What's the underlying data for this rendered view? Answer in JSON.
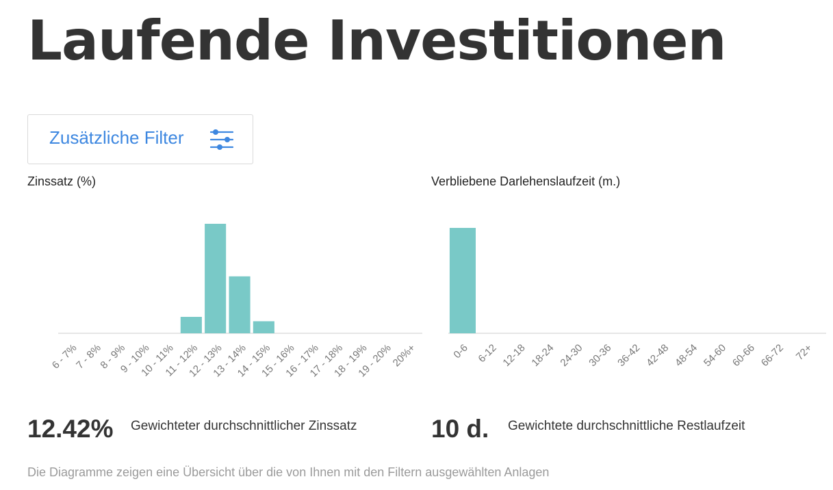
{
  "page": {
    "title": "Laufende Investitionen",
    "filter_button_label": "Zusätzliche Filter",
    "filter_icon": "sliders-icon",
    "accent_color": "#3d87e0",
    "bar_color": "#79c9c7",
    "footnote": "Die Diagramme zeigen eine Übersicht über die von Ihnen mit den Filtern ausgewählten Anlagen"
  },
  "summary": {
    "interest": {
      "value": "12.42%",
      "label": "Gewichteter durchschnittlicher Zinssatz"
    },
    "term": {
      "value": "10 d.",
      "label": "Gewichtete durchschnittliche Restlaufzeit"
    }
  },
  "chart_data": [
    {
      "type": "bar",
      "title": "Zinssatz (%)",
      "categories": [
        "6 - 7%",
        "7 - 8%",
        "8 - 9%",
        "9 - 10%",
        "10 - 11%",
        "11 - 12%",
        "12 - 13%",
        "13 - 14%",
        "14 - 15%",
        "15 - 16%",
        "16 - 17%",
        "17 - 18%",
        "18 - 19%",
        "19 - 20%",
        "20%+"
      ],
      "values": [
        0,
        0,
        0,
        0,
        0,
        15,
        100,
        52,
        11,
        0,
        0,
        0,
        0,
        0,
        0
      ],
      "ylim": [
        0,
        100
      ],
      "grid": false
    },
    {
      "type": "bar",
      "title": "Verbliebene Darlehenslaufzeit (m.)",
      "categories": [
        "0-6",
        "6-12",
        "12-18",
        "18-24",
        "24-30",
        "30-36",
        "36-42",
        "42-48",
        "48-54",
        "54-60",
        "60-66",
        "66-72",
        "72+"
      ],
      "values": [
        100,
        0,
        0,
        0,
        0,
        0,
        0,
        0,
        0,
        0,
        0,
        0,
        0
      ],
      "ylim": [
        0,
        100
      ],
      "grid": false
    }
  ]
}
